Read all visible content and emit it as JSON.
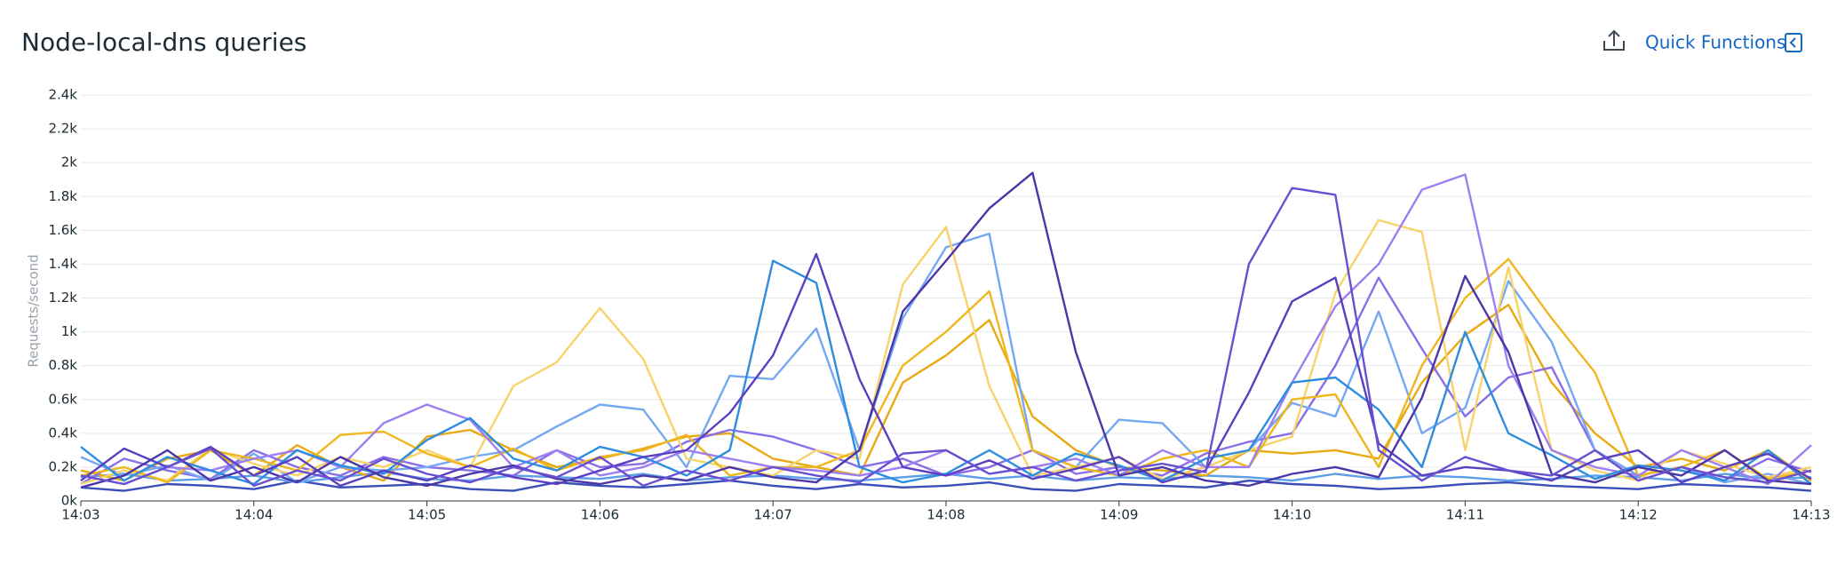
{
  "header": {
    "title": "Node-local-dns queries",
    "action": "Quick Functions"
  },
  "chart_data": {
    "type": "line",
    "y_label": "Requests/second",
    "x": [
      0,
      0.25,
      0.5,
      0.75,
      1,
      1.25,
      1.5,
      1.75,
      2,
      2.25,
      2.5,
      2.75,
      3,
      3.25,
      3.5,
      3.75,
      4,
      4.25,
      4.5,
      4.75,
      5,
      5.25,
      5.5,
      5.75,
      6,
      6.25,
      6.5,
      6.75,
      7,
      7.25,
      7.5,
      7.75,
      8,
      8.25,
      8.5,
      8.75,
      9,
      9.25,
      9.5,
      9.75,
      10
    ],
    "xlim": [
      0,
      10
    ],
    "xticks": [
      {
        "value": 0,
        "label": "14:03"
      },
      {
        "value": 1,
        "label": "14:04"
      },
      {
        "value": 2,
        "label": "14:05"
      },
      {
        "value": 3,
        "label": "14:06"
      },
      {
        "value": 4,
        "label": "14:07"
      },
      {
        "value": 5,
        "label": "14:08"
      },
      {
        "value": 6,
        "label": "14:09"
      },
      {
        "value": 7,
        "label": "14:10"
      },
      {
        "value": 8,
        "label": "14:11"
      },
      {
        "value": 9,
        "label": "14:12"
      },
      {
        "value": 10,
        "label": "14:13"
      }
    ],
    "ylim": [
      0,
      2400
    ],
    "yticks": [
      {
        "value": 0,
        "label": "0k"
      },
      {
        "value": 200,
        "label": "0.2k"
      },
      {
        "value": 400,
        "label": "0.4k"
      },
      {
        "value": 600,
        "label": "0.6k"
      },
      {
        "value": 800,
        "label": "0.8k"
      },
      {
        "value": 1000,
        "label": "1k"
      },
      {
        "value": 1200,
        "label": "1.2k"
      },
      {
        "value": 1400,
        "label": "1.4k"
      },
      {
        "value": 1600,
        "label": "1.6k"
      },
      {
        "value": 1800,
        "label": "1.8k"
      },
      {
        "value": 2000,
        "label": "2k"
      },
      {
        "value": 2200,
        "label": "2.2k"
      },
      {
        "value": 2400,
        "label": "2.4k"
      }
    ],
    "grid": true,
    "series": [
      {
        "color": "#3a4fb8",
        "values": [
          80,
          60,
          100,
          90,
          70,
          120,
          80,
          90,
          100,
          70,
          60,
          110,
          90,
          80,
          100,
          120,
          90,
          70,
          100,
          80,
          90,
          110,
          70,
          60,
          100,
          90,
          80,
          120,
          100,
          90,
          70,
          80,
          100,
          110,
          90,
          80,
          70,
          100,
          90,
          80,
          60
        ]
      },
      {
        "color": "#5c9ee8",
        "values": [
          140,
          160,
          120,
          130,
          150,
          110,
          140,
          170,
          130,
          120,
          150,
          140,
          130,
          160,
          120,
          140,
          150,
          130,
          120,
          140,
          160,
          130,
          150,
          120,
          140,
          130,
          150,
          140,
          120,
          160,
          130,
          150,
          140,
          120,
          130,
          150,
          140,
          120,
          160,
          130,
          140
        ]
      },
      {
        "color": "#e8a912",
        "values": [
          180,
          120,
          250,
          300,
          150,
          330,
          200,
          120,
          380,
          420,
          300,
          200,
          250,
          310,
          380,
          400,
          250,
          200,
          150,
          700,
          860,
          1070,
          500,
          300,
          200,
          180,
          150,
          300,
          280,
          300,
          250,
          700,
          980,
          1160,
          700,
          400,
          200,
          250,
          180,
          300,
          120
        ]
      },
      {
        "color": "#8a6ee8",
        "values": [
          100,
          250,
          180,
          130,
          300,
          200,
          150,
          260,
          200,
          180,
          150,
          300,
          200,
          220,
          350,
          420,
          380,
          300,
          200,
          250,
          150,
          200,
          300,
          160,
          200,
          150,
          280,
          350,
          400,
          800,
          1320,
          900,
          500,
          730,
          790,
          300,
          150,
          200,
          120,
          250,
          170
        ]
      },
      {
        "color": "#74a8f2",
        "values": [
          260,
          150,
          210,
          120,
          280,
          110,
          200,
          180,
          200,
          260,
          300,
          440,
          570,
          540,
          200,
          740,
          720,
          1020,
          300,
          1080,
          1500,
          1580,
          300,
          200,
          480,
          460,
          200,
          300,
          580,
          500,
          1120,
          400,
          550,
          1300,
          940,
          300,
          150,
          200,
          110,
          160,
          100
        ]
      },
      {
        "color": "#f7d36b",
        "values": [
          100,
          180,
          120,
          310,
          220,
          150,
          260,
          200,
          300,
          200,
          680,
          820,
          1140,
          840,
          250,
          200,
          150,
          300,
          250,
          1280,
          1620,
          680,
          150,
          200,
          260,
          130,
          200,
          300,
          380,
          1230,
          1660,
          1590,
          300,
          1380,
          300,
          180,
          120,
          300,
          220,
          140,
          200
        ]
      },
      {
        "color": "#f0b61e",
        "values": [
          150,
          200,
          110,
          300,
          250,
          180,
          390,
          410,
          280,
          200,
          310,
          180,
          260,
          300,
          390,
          150,
          200,
          200,
          300,
          800,
          1000,
          1240,
          300,
          200,
          150,
          250,
          300,
          200,
          600,
          630,
          200,
          800,
          1200,
          1430,
          1080,
          760,
          150,
          200,
          300,
          130,
          180
        ]
      },
      {
        "color": "#9d7ff2",
        "values": [
          150,
          100,
          200,
          180,
          250,
          300,
          200,
          460,
          570,
          480,
          200,
          300,
          150,
          200,
          300,
          250,
          200,
          180,
          150,
          200,
          300,
          160,
          200,
          250,
          150,
          300,
          200,
          200,
          700,
          1150,
          1400,
          1840,
          1930,
          800,
          300,
          200,
          150,
          300,
          200,
          100,
          330
        ]
      },
      {
        "color": "#2e8ddf",
        "values": [
          320,
          120,
          260,
          180,
          100,
          300,
          210,
          160,
          360,
          490,
          250,
          180,
          320,
          260,
          150,
          300,
          1420,
          1290,
          200,
          110,
          160,
          300,
          150,
          280,
          210,
          120,
          250,
          300,
          700,
          730,
          540,
          200,
          1000,
          400,
          270,
          130,
          210,
          180,
          120,
          300,
          100
        ]
      },
      {
        "color": "#5a3fc0",
        "values": [
          120,
          310,
          200,
          320,
          150,
          260,
          90,
          180,
          120,
          210,
          140,
          100,
          180,
          260,
          300,
          520,
          860,
          1460,
          720,
          200,
          150,
          240,
          130,
          190,
          260,
          110,
          180,
          640,
          1180,
          1320,
          340,
          150,
          200,
          180,
          120,
          240,
          300,
          110,
          200,
          280,
          130
        ]
      },
      {
        "color": "#4b36a8",
        "values": [
          80,
          150,
          300,
          120,
          200,
          110,
          260,
          140,
          90,
          160,
          210,
          130,
          100,
          150,
          120,
          200,
          140,
          110,
          300,
          1120,
          1420,
          1730,
          1940,
          880,
          150,
          200,
          120,
          90,
          160,
          200,
          140,
          610,
          1330,
          880,
          160,
          110,
          200,
          150,
          300,
          120,
          100
        ]
      },
      {
        "color": "#6a4fd0",
        "values": [
          150,
          100,
          200,
          310,
          90,
          180,
          120,
          250,
          160,
          110,
          200,
          140,
          260,
          90,
          180,
          120,
          200,
          150,
          110,
          280,
          300,
          160,
          200,
          120,
          180,
          220,
          170,
          1400,
          1850,
          1810,
          300,
          120,
          260,
          180,
          150,
          300,
          120,
          200,
          140,
          110,
          180
        ]
      }
    ]
  }
}
